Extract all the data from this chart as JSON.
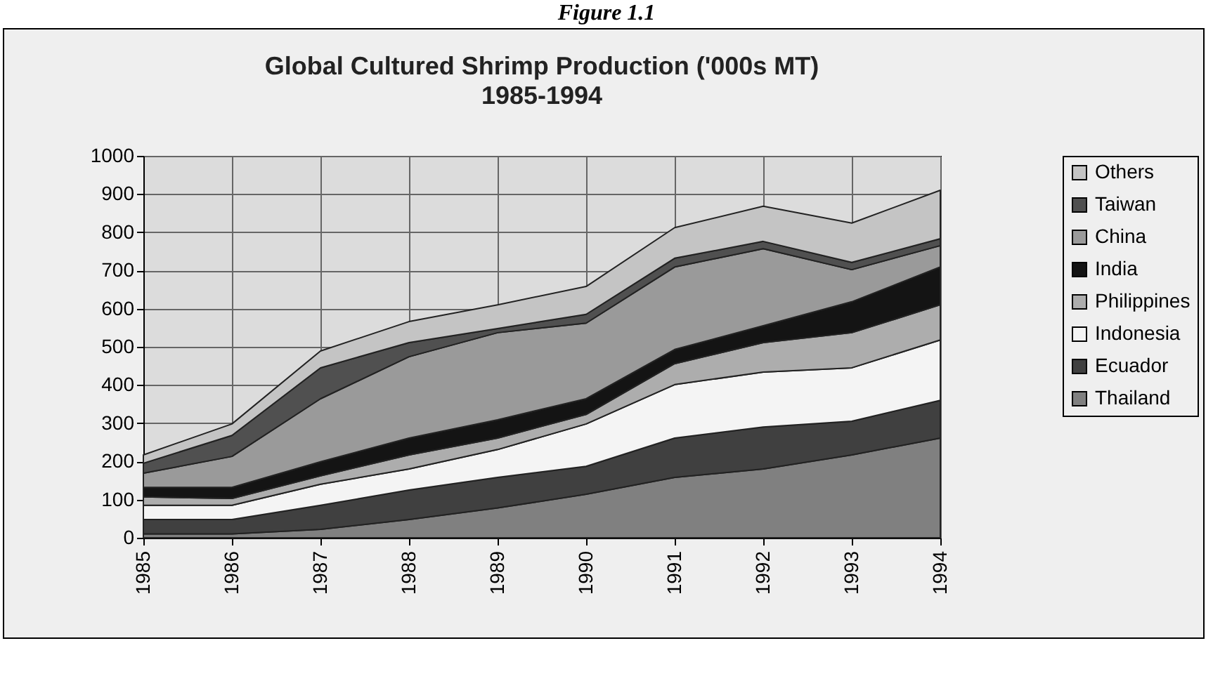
{
  "chart_data": {
    "type": "area",
    "stacked": true,
    "title": "Global Cultured Shrimp Production ('000s MT)",
    "subtitle": "1985-1994",
    "annotations": [
      "Figure 1.1"
    ],
    "categories": [
      "1985",
      "1986",
      "1987",
      "1988",
      "1989",
      "1990",
      "1991",
      "1992",
      "1993",
      "1994"
    ],
    "ylim": [
      0,
      1000
    ],
    "yticks": [
      0,
      100,
      200,
      300,
      400,
      500,
      600,
      700,
      800,
      900,
      {
        "value": 1000,
        "label": "1000"
      }
    ],
    "grid": true,
    "legend": "right",
    "series": [
      {
        "name": "Thailand",
        "color": "#808080",
        "values": [
          10,
          10,
          22,
          48,
          78,
          114,
          158,
          180,
          217,
          261
        ]
      },
      {
        "name": "Ecuador",
        "color": "#404040",
        "values": [
          38,
          38,
          63,
          77,
          80,
          73,
          103,
          110,
          88,
          99
        ]
      },
      {
        "name": "Indonesia",
        "color": "#f4f4f4",
        "values": [
          37,
          37,
          55,
          55,
          73,
          111,
          140,
          144,
          140,
          158
        ]
      },
      {
        "name": "Philippines",
        "color": "#adadad",
        "values": [
          22,
          18,
          22,
          37,
          30,
          25,
          55,
          77,
          92,
          92
        ]
      },
      {
        "name": "India",
        "color": "#141414",
        "values": [
          25,
          29,
          37,
          44,
          48,
          41,
          37,
          44,
          81,
          99
        ]
      },
      {
        "name": "China",
        "color": "#9a9a9a",
        "values": [
          37,
          81,
          165,
          213,
          228,
          198,
          216,
          202,
          84,
          56
        ]
      },
      {
        "name": "Taiwan",
        "color": "#505050",
        "values": [
          26,
          55,
          81,
          37,
          11,
          23,
          23,
          19,
          19,
          18
        ]
      },
      {
        "name": "Others",
        "color": "#c4c4c4",
        "values": [
          22,
          30,
          44,
          55,
          62,
          73,
          80,
          92,
          103,
          127
        ]
      }
    ]
  }
}
